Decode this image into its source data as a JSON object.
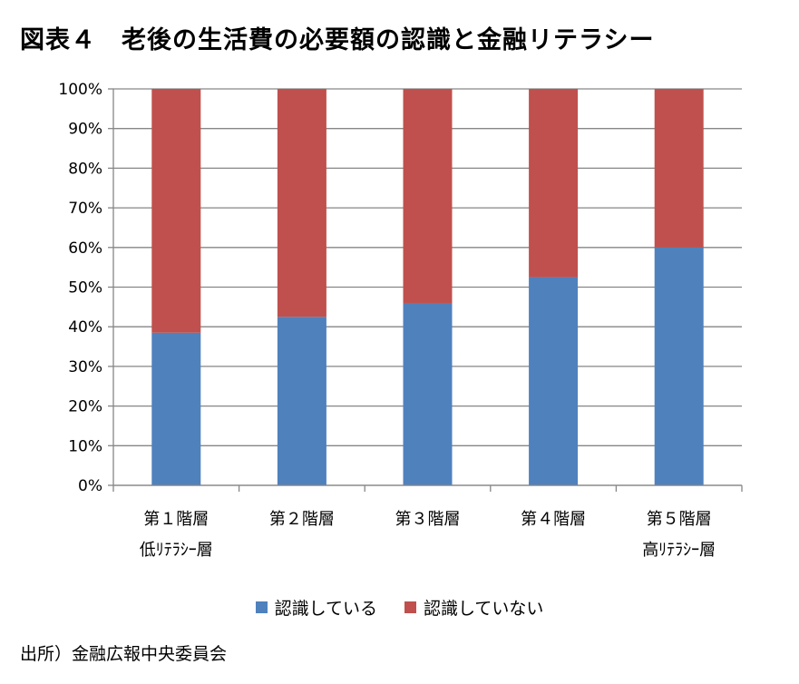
{
  "title": "図表４　老後の生活費の必要額の認識と金融リテラシー",
  "source": "出所）金融広報中央委員会",
  "colors": {
    "recognize": "#4f81bd",
    "not_recognize": "#c0504d",
    "grid": "#868686"
  },
  "chart_data": {
    "type": "bar",
    "stacked": true,
    "percent_stacked": true,
    "categories": [
      [
        "第１階層",
        "低ﾘﾃﾗｼｰ層"
      ],
      [
        "第２階層"
      ],
      [
        "第３階層"
      ],
      [
        "第４階層"
      ],
      [
        "第５階層",
        "高ﾘﾃﾗｼｰ層"
      ]
    ],
    "series": [
      {
        "name": "認識している",
        "values": [
          38.5,
          42.5,
          46,
          52.5,
          60
        ],
        "color": "#4f81bd"
      },
      {
        "name": "認識していない",
        "values": [
          61.5,
          57.5,
          54,
          47.5,
          40
        ],
        "color": "#c0504d"
      }
    ],
    "ylim": [
      0,
      100
    ],
    "yticks": [
      "0%",
      "10%",
      "20%",
      "30%",
      "40%",
      "50%",
      "60%",
      "70%",
      "80%",
      "90%",
      "100%"
    ],
    "grid": true,
    "legend_position": "bottom"
  }
}
